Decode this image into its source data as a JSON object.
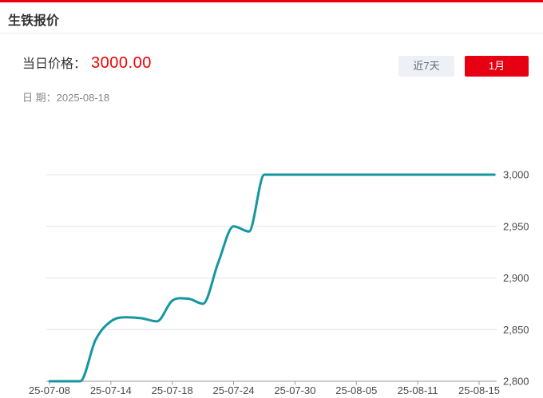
{
  "page": {
    "title": "生铁报价"
  },
  "price_panel": {
    "price_label": "当日价格：",
    "price_value": "3000.00",
    "date_label": "日 期：",
    "date_value": "2025-08-18"
  },
  "range_buttons": [
    {
      "label": "近7天",
      "active": false
    },
    {
      "label": "1月",
      "active": true
    }
  ],
  "colors": {
    "accent_red": "#e60012",
    "price_red": "#f20000",
    "line_teal": "#1596a1",
    "grid": "#e4e4e4",
    "axis": "#999999",
    "tick_text": "#4a4a4a",
    "inactive_btn_bg": "#edf0f5",
    "inactive_btn_text": "#606a76",
    "title_text": "#333333",
    "date_text": "#888888",
    "divider": "#ececec"
  },
  "chart_data": {
    "type": "line",
    "title": "",
    "xlabel": "",
    "ylabel": "",
    "smooth": true,
    "grid": true,
    "legend": "none",
    "x": [
      "25-07-08",
      "25-07-09",
      "25-07-10",
      "25-07-11",
      "25-07-14",
      "25-07-15",
      "25-07-16",
      "25-07-17",
      "25-07-18",
      "25-07-21",
      "25-07-22",
      "25-07-23",
      "25-07-24",
      "25-07-25",
      "25-07-28",
      "25-07-29",
      "25-07-30",
      "25-07-31",
      "25-08-01",
      "25-08-04",
      "25-08-05",
      "25-08-06",
      "25-08-07",
      "25-08-08",
      "25-08-11",
      "25-08-12",
      "25-08-13",
      "25-08-14",
      "25-08-15",
      "25-08-18"
    ],
    "values": [
      2800,
      2800,
      2800,
      2840,
      2858,
      2862,
      2861,
      2858,
      2878,
      2880,
      2875,
      2915,
      2950,
      2945,
      3000,
      3000,
      3000,
      3000,
      3000,
      3000,
      3000,
      3000,
      3000,
      3000,
      3000,
      3000,
      3000,
      3000,
      3000,
      3000
    ],
    "x_tick_indices": [
      0,
      4,
      8,
      12,
      16,
      20,
      24,
      28
    ],
    "x_tick_labels": [
      "25-07-08",
      "25-07-14",
      "25-07-18",
      "25-07-24",
      "25-07-30",
      "25-08-05",
      "25-08-11",
      "25-08-15"
    ],
    "y_ticks": [
      2800,
      2850,
      2900,
      2950,
      3000
    ],
    "y_tick_labels": [
      "2,800",
      "2,850",
      "2,900",
      "2,950",
      "3,000"
    ],
    "ylim": [
      2800,
      3000
    ]
  }
}
